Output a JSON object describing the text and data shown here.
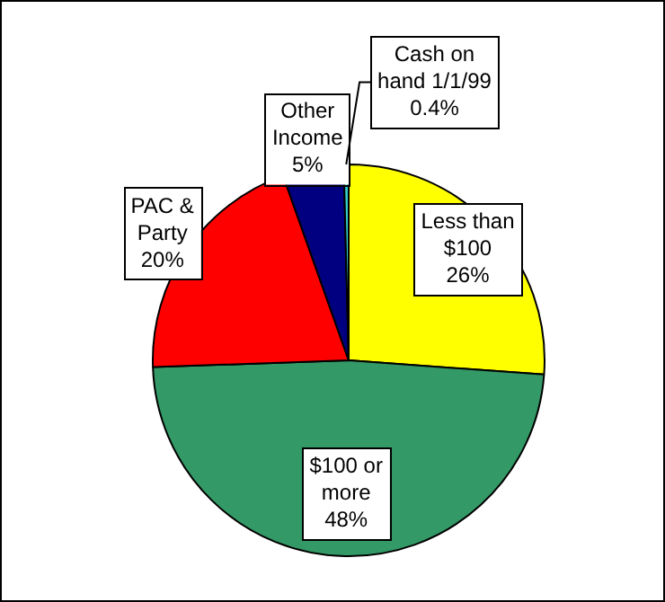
{
  "chart_data": {
    "type": "pie",
    "categories": [
      "Less than $100",
      "$100 or more",
      "PAC & Party",
      "Other Income",
      "Cash on hand 1/1/99"
    ],
    "values": [
      26,
      48,
      20,
      5,
      0.4
    ],
    "colors": [
      "#ffff00",
      "#339966",
      "#ff0000",
      "#000080",
      "#33cccc"
    ],
    "value_labels": [
      "26%",
      "48%",
      "20%",
      "5%",
      "0.4%"
    ],
    "legend": false
  }
}
